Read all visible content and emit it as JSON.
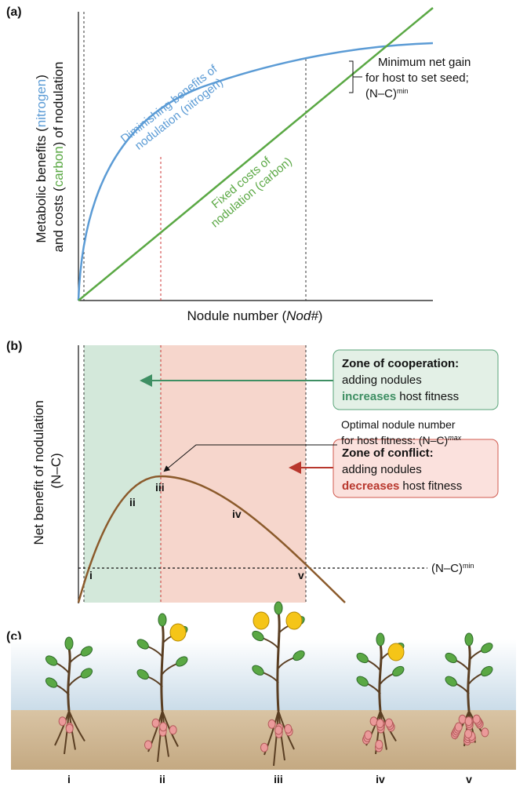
{
  "panel_a": {
    "label": "(a)",
    "y_label": {
      "line1": [
        "Metabolic benefits (",
        "nitrogen",
        ")"
      ],
      "line2": [
        "and costs (",
        "carbon",
        ") of nodulation"
      ]
    },
    "x_label": [
      "Nodule number (",
      "Nod#",
      ")"
    ],
    "benefit_curve_label": [
      "Diminishing benefits of",
      "nodulation (nitrogen)"
    ],
    "cost_curve_label": [
      "Fixed costs of",
      "nodulation (carbon)"
    ],
    "annotation": [
      "Minimum net gain",
      "for host to set seed;",
      "(N–C)",
      "min"
    ]
  },
  "panel_b": {
    "label": "(b)",
    "y_label": [
      "Net benefit of nodulation",
      "(N–C)"
    ],
    "threshold_label": [
      "(N–C)",
      "min"
    ],
    "optimum_label": [
      "Optimal nodule number",
      "for host fitness: (N–C)",
      "max"
    ],
    "points": [
      "i",
      "ii",
      "iii",
      "iv",
      "v"
    ],
    "cooperation": {
      "title": "Zone of cooperation:",
      "line1": "adding nodules",
      "emphasis": "increases",
      "rest": "host fitness"
    },
    "conflict": {
      "title": "Zone of conflict:",
      "line1": "adding nodules",
      "emphasis": "decreases",
      "rest": "host fitness"
    }
  },
  "panel_c": {
    "label": "(c)",
    "plants": [
      "i",
      "ii",
      "iii",
      "iv",
      "v"
    ]
  }
}
